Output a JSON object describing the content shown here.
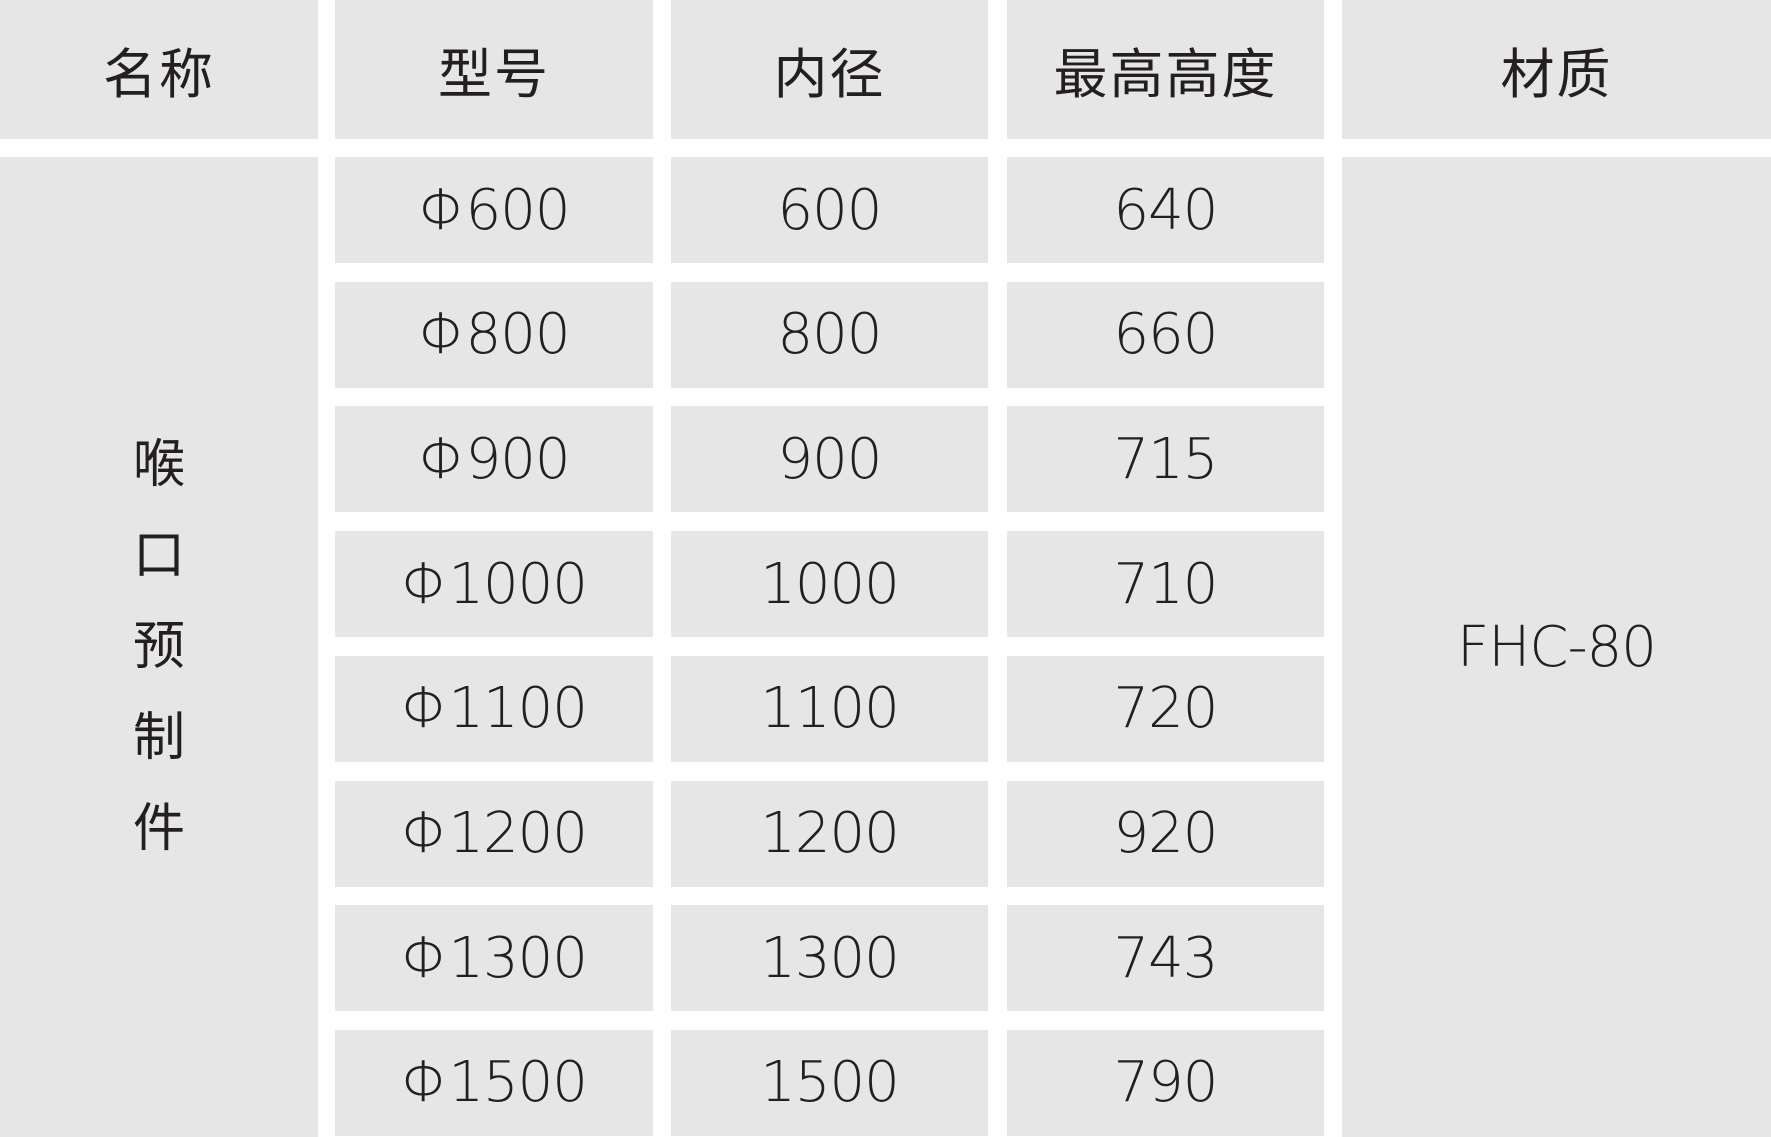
{
  "table": {
    "headers": [
      "名称",
      "型号",
      "内径",
      "最高高度",
      "材质"
    ],
    "name_chars": [
      "喉",
      "口",
      "预",
      "制",
      "件"
    ],
    "name": "喉口预制件",
    "material": "FHC-80",
    "rows": [
      {
        "model": "Φ600",
        "inner_diameter": "600",
        "max_height": "640"
      },
      {
        "model": "Φ800",
        "inner_diameter": "800",
        "max_height": "660"
      },
      {
        "model": "Φ900",
        "inner_diameter": "900",
        "max_height": "715"
      },
      {
        "model": "Φ1000",
        "inner_diameter": "1000",
        "max_height": "710"
      },
      {
        "model": "Φ1100",
        "inner_diameter": "1100",
        "max_height": "720"
      },
      {
        "model": "Φ1200",
        "inner_diameter": "1200",
        "max_height": "920"
      },
      {
        "model": "Φ1300",
        "inner_diameter": "1300",
        "max_height": "743"
      },
      {
        "model": "Φ1500",
        "inner_diameter": "1500",
        "max_height": "790"
      }
    ]
  },
  "colors": {
    "cell_bg": "#e6e6e6",
    "text": "#231f20",
    "gap": "#ffffff"
  }
}
